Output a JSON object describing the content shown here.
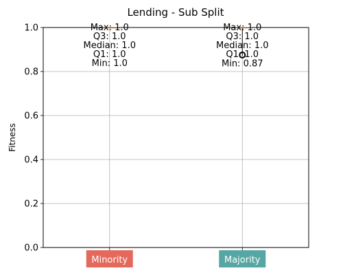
{
  "chart_data": {
    "type": "box",
    "title": "Lending - Sub Split",
    "xlabel": "",
    "ylabel": "Fitness",
    "ylim": [
      0.0,
      1.0
    ],
    "yticks": [
      "0.0",
      "0.2",
      "0.4",
      "0.6",
      "0.8",
      "1.0"
    ],
    "grid": true,
    "categories": [
      {
        "label": "Minority",
        "color": "#e5695b",
        "stats": {
          "max": 1.0,
          "q3": 1.0,
          "median": 1.0,
          "q1": 1.0,
          "min": 1.0
        },
        "annotations": [
          "Max: 1.0",
          "Q3: 1.0",
          "Median: 1.0",
          "Q1: 1.0",
          "Min: 1.0"
        ],
        "outliers": []
      },
      {
        "label": "Majority",
        "color": "#56a6a3",
        "stats": {
          "max": 1.0,
          "q3": 1.0,
          "median": 1.0,
          "q1": 1.0,
          "min": 0.87
        },
        "annotations": [
          "Max: 1.0",
          "Q3: 1.0",
          "Median: 1.0",
          "Q1: 1.0",
          "Min: 0.87"
        ],
        "outliers": [
          0.875
        ]
      }
    ]
  }
}
